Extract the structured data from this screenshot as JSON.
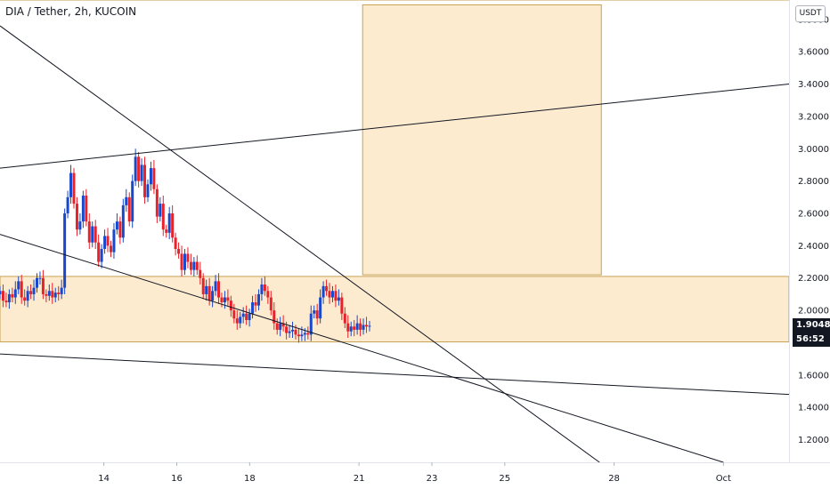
{
  "header": {
    "title": "DIA / Tether, 2h, KUCOIN"
  },
  "axis_badge": "USDT",
  "price_tag": {
    "price": "1.9048",
    "countdown": "56:52",
    "price_color": "#131722",
    "countdown_color": "#131722"
  },
  "colors": {
    "up": "#1848cc",
    "down": "#e8222a",
    "zone_fill": "#fdebd0",
    "zone_stroke": "#c8a050",
    "line": "#131722"
  },
  "chart_data": {
    "type": "candlestick",
    "title": "DIA / Tether, 2h, KUCOIN",
    "ylim": [
      1.06,
      3.92
    ],
    "yticks": [
      "3.8000",
      "3.6000",
      "3.4000",
      "3.2000",
      "3.0000",
      "2.8000",
      "2.6000",
      "2.4000",
      "2.2000",
      "2.0000",
      "1.8000",
      "1.6000",
      "1.4000",
      "1.2000"
    ],
    "xlim": [
      11.15,
      32.8
    ],
    "xticks": [
      {
        "label": "14",
        "x": 14
      },
      {
        "label": "16",
        "x": 16
      },
      {
        "label": "18",
        "x": 18
      },
      {
        "label": "21",
        "x": 21
      },
      {
        "label": "23",
        "x": 23
      },
      {
        "label": "25",
        "x": 25
      },
      {
        "label": "28",
        "x": 28
      },
      {
        "label": "Oct",
        "x": 31
      }
    ],
    "zones": [
      {
        "name": "support-zone",
        "x0": 11.15,
        "x1": 32.8,
        "y0": 1.805,
        "y1": 2.21
      },
      {
        "name": "target-zone",
        "x0": 21.1,
        "x1": 27.65,
        "y0": 2.22,
        "y1": 3.89
      },
      {
        "name": "top-zone",
        "x0": 11.15,
        "x1": 32.8,
        "y0": 3.92,
        "y1": 3.93
      }
    ],
    "trendlines": [
      {
        "name": "upper-rising-line",
        "x0": 11.15,
        "y0": 2.88,
        "x1": 32.8,
        "y1": 3.4
      },
      {
        "name": "steep-descending-line",
        "x0": 11.15,
        "y0": 3.76,
        "x1": 27.6,
        "y1": 1.06
      },
      {
        "name": "mid-descending-line",
        "x0": 11.15,
        "y0": 2.47,
        "x1": 31.0,
        "y1": 1.06
      },
      {
        "name": "lower-descending-line",
        "x0": 11.15,
        "y0": 1.73,
        "x1": 32.8,
        "y1": 1.48
      }
    ],
    "candles_close": [
      2.12,
      2.06,
      2.05,
      2.1,
      2.08,
      2.13,
      2.18,
      2.08,
      2.06,
      2.12,
      2.1,
      2.14,
      2.2,
      2.2,
      2.1,
      2.09,
      2.12,
      2.08,
      2.11,
      2.1,
      2.14,
      2.6,
      2.7,
      2.85,
      2.66,
      2.5,
      2.55,
      2.71,
      2.55,
      2.42,
      2.52,
      2.42,
      2.3,
      2.38,
      2.46,
      2.4,
      2.36,
      2.5,
      2.55,
      2.45,
      2.65,
      2.7,
      2.55,
      2.8,
      2.95,
      2.8,
      2.9,
      2.7,
      2.78,
      2.88,
      2.75,
      2.58,
      2.66,
      2.5,
      2.48,
      2.6,
      2.45,
      2.38,
      2.35,
      2.25,
      2.35,
      2.3,
      2.25,
      2.3,
      2.25,
      2.2,
      2.1,
      2.15,
      2.06,
      2.12,
      2.18,
      2.08,
      2.05,
      2.08,
      2.06,
      2.0,
      1.95,
      1.92,
      1.96,
      1.98,
      1.94,
      1.98,
      2.05,
      2.03,
      2.1,
      2.16,
      2.12,
      2.08,
      2.0,
      1.92,
      1.88,
      1.92,
      1.9,
      1.86,
      1.87,
      1.88,
      1.85,
      1.84,
      1.85,
      1.86,
      1.85,
      1.98,
      2.0,
      1.95,
      2.08,
      2.15,
      2.12,
      2.08,
      2.12,
      2.06,
      2.08,
      1.98,
      1.92,
      1.87,
      1.9,
      1.88,
      1.92,
      1.88,
      1.91,
      1.9,
      1.9048
    ],
    "candles_x0": 11.15,
    "candles_dx": 0.0845
  }
}
